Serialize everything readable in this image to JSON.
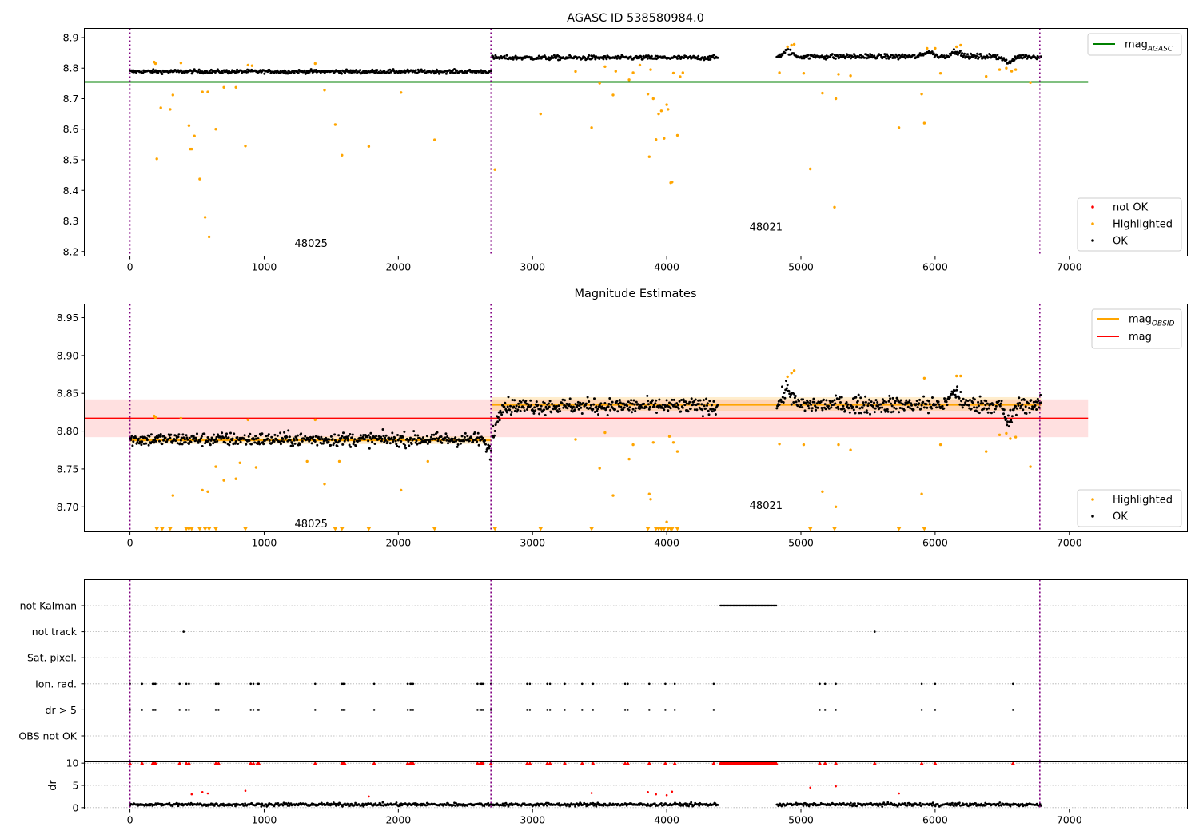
{
  "colors": {
    "green": "#008000",
    "orange": "#ffa500",
    "red": "#ff0000",
    "black": "#000000",
    "purple": "#800080",
    "band_red": "#ff0000",
    "band_orange": "#ffa500",
    "grid": "#b0b0b0"
  },
  "chart_data": [
    {
      "type": "scatter",
      "title": "AGASC ID 538580984.0",
      "xlim": [
        -340,
        7880
      ],
      "ylim": [
        8.185,
        8.93
      ],
      "xticks": [
        0,
        1000,
        2000,
        3000,
        4000,
        5000,
        6000,
        7000
      ],
      "xtick_labels": [
        "0",
        "1000",
        "2000",
        "3000",
        "4000",
        "5000",
        "6000",
        "7000"
      ],
      "yticks": [
        8.2,
        8.3,
        8.4,
        8.5,
        8.6,
        8.7,
        8.8,
        8.9
      ],
      "ytick_labels": [
        "8.2",
        "8.3",
        "8.4",
        "8.5",
        "8.6",
        "8.7",
        "8.8",
        "8.9"
      ],
      "obs_boundaries": [
        0,
        2690,
        6780
      ],
      "obs_labels": [
        {
          "text": "48025",
          "x": 1350,
          "y": 8.215
        },
        {
          "text": "48021",
          "x": 4740,
          "y": 8.268
        }
      ],
      "hlines": [
        {
          "name": "mag_AGASC",
          "y": 8.755,
          "x0": -340,
          "x1": 7140,
          "color": "green"
        }
      ],
      "legend_lines": [
        {
          "label": "mag",
          "sub": "AGASC",
          "color": "green"
        }
      ],
      "legend_markers": [
        {
          "label": "not OK",
          "color": "red"
        },
        {
          "label": "Highlighted",
          "color": "orange"
        },
        {
          "label": "OK",
          "color": "black"
        }
      ],
      "ok_segments": [
        {
          "x0": 0,
          "x1": 2690,
          "mean": 8.789,
          "noise": 0.006
        },
        {
          "x0": 2700,
          "x1": 4380,
          "mean": 8.834,
          "noise": 0.007
        },
        {
          "x0": 4820,
          "x1": 6790,
          "mean": 8.838,
          "noise": 0.008
        }
      ],
      "ok_features": [
        {
          "x": 6550,
          "y": 8.81
        },
        {
          "x": 4900,
          "y": 8.862
        },
        {
          "x": 6150,
          "y": 8.862
        },
        {
          "x": 5950,
          "y": 8.86
        }
      ],
      "highlighted": [
        [
          180,
          8.82
        ],
        [
          190,
          8.815
        ],
        [
          200,
          8.503
        ],
        [
          230,
          8.67
        ],
        [
          300,
          8.665
        ],
        [
          320,
          8.712
        ],
        [
          380,
          8.817
        ],
        [
          440,
          8.612
        ],
        [
          450,
          8.535
        ],
        [
          460,
          8.535
        ],
        [
          480,
          8.578
        ],
        [
          520,
          8.437
        ],
        [
          540,
          8.722
        ],
        [
          560,
          8.312
        ],
        [
          580,
          8.722
        ],
        [
          590,
          8.248
        ],
        [
          640,
          8.6
        ],
        [
          700,
          8.737
        ],
        [
          790,
          8.737
        ],
        [
          860,
          8.545
        ],
        [
          880,
          8.81
        ],
        [
          910,
          8.808
        ],
        [
          1380,
          8.815
        ],
        [
          1450,
          8.728
        ],
        [
          1530,
          8.615
        ],
        [
          1580,
          8.515
        ],
        [
          1780,
          8.544
        ],
        [
          2020,
          8.72
        ],
        [
          2270,
          8.565
        ],
        [
          2720,
          8.468
        ],
        [
          3060,
          8.65
        ],
        [
          3320,
          8.789
        ],
        [
          3440,
          8.605
        ],
        [
          3500,
          8.751
        ],
        [
          3540,
          8.805
        ],
        [
          3600,
          8.712
        ],
        [
          3620,
          8.79
        ],
        [
          3720,
          8.762
        ],
        [
          3750,
          8.785
        ],
        [
          3800,
          8.81
        ],
        [
          3860,
          8.715
        ],
        [
          3870,
          8.51
        ],
        [
          3880,
          8.795
        ],
        [
          3900,
          8.7
        ],
        [
          3920,
          8.566
        ],
        [
          3940,
          8.65
        ],
        [
          3960,
          8.66
        ],
        [
          3980,
          8.57
        ],
        [
          4000,
          8.68
        ],
        [
          4010,
          8.665
        ],
        [
          4030,
          8.425
        ],
        [
          4040,
          8.427
        ],
        [
          4050,
          8.784
        ],
        [
          4080,
          8.58
        ],
        [
          4100,
          8.772
        ],
        [
          4120,
          8.785
        ],
        [
          4840,
          8.785
        ],
        [
          4900,
          8.87
        ],
        [
          4930,
          8.875
        ],
        [
          4950,
          8.878
        ],
        [
          5020,
          8.783
        ],
        [
          5070,
          8.47
        ],
        [
          5160,
          8.718
        ],
        [
          5250,
          8.345
        ],
        [
          5260,
          8.7
        ],
        [
          5280,
          8.78
        ],
        [
          5370,
          8.775
        ],
        [
          5730,
          8.605
        ],
        [
          5900,
          8.715
        ],
        [
          5920,
          8.62
        ],
        [
          5940,
          8.865
        ],
        [
          6000,
          8.865
        ],
        [
          6040,
          8.783
        ],
        [
          6160,
          8.87
        ],
        [
          6190,
          8.875
        ],
        [
          6380,
          8.773
        ],
        [
          6480,
          8.795
        ],
        [
          6530,
          8.8
        ],
        [
          6570,
          8.79
        ],
        [
          6600,
          8.795
        ],
        [
          6710,
          8.753
        ]
      ]
    },
    {
      "type": "scatter",
      "title": "Magnitude Estimates",
      "xlim": [
        -340,
        7880
      ],
      "ylim": [
        8.667,
        8.968
      ],
      "xticks": [
        0,
        1000,
        2000,
        3000,
        4000,
        5000,
        6000,
        7000
      ],
      "xtick_labels": [
        "0",
        "1000",
        "2000",
        "3000",
        "4000",
        "5000",
        "6000",
        "7000"
      ],
      "yticks": [
        8.7,
        8.75,
        8.8,
        8.85,
        8.9,
        8.95
      ],
      "ytick_labels": [
        "8.70",
        "8.75",
        "8.80",
        "8.85",
        "8.90",
        "8.95"
      ],
      "obs_boundaries": [
        0,
        2690,
        6780
      ],
      "obs_labels": [
        {
          "text": "48025",
          "x": 1350,
          "y": 8.673
        },
        {
          "text": "48021",
          "x": 4740,
          "y": 8.697
        }
      ],
      "mag": {
        "y": 8.817,
        "band": [
          8.792,
          8.842
        ],
        "x0": -340,
        "x1": 7140
      },
      "mag_obsid": [
        {
          "x0": 0,
          "x1": 2690,
          "y": 8.788,
          "band": [
            8.783,
            8.793
          ]
        },
        {
          "x0": 2700,
          "x1": 6790,
          "y": 8.835,
          "band": [
            8.827,
            8.845
          ]
        }
      ],
      "legend_lines": [
        {
          "label": "mag",
          "sub": "OBSID",
          "color": "orange"
        },
        {
          "label": "mag",
          "sub": "",
          "color": "red"
        }
      ],
      "legend_markers": [
        {
          "label": "Highlighted",
          "color": "orange"
        },
        {
          "label": "OK",
          "color": "black"
        }
      ],
      "ok_segments": [
        {
          "x0": 0,
          "x1": 2690,
          "mean": 8.789,
          "noise": 0.009
        },
        {
          "x0": 2700,
          "x1": 4380,
          "mean": 8.833,
          "noise": 0.01
        },
        {
          "x0": 4820,
          "x1": 6790,
          "mean": 8.835,
          "noise": 0.011
        }
      ],
      "ok_features": [
        {
          "x": 6550,
          "y": 8.808
        },
        {
          "x": 4900,
          "y": 8.862
        },
        {
          "x": 6150,
          "y": 8.858
        },
        {
          "x": 2690,
          "y": 8.77
        }
      ],
      "highlighted": [
        [
          180,
          8.82
        ],
        [
          190,
          8.818
        ],
        [
          240,
          8.672
        ],
        [
          320,
          8.715
        ],
        [
          380,
          8.817
        ],
        [
          540,
          8.722
        ],
        [
          580,
          8.72
        ],
        [
          640,
          8.753
        ],
        [
          700,
          8.735
        ],
        [
          790,
          8.737
        ],
        [
          820,
          8.758
        ],
        [
          880,
          8.815
        ],
        [
          940,
          8.752
        ],
        [
          1320,
          8.76
        ],
        [
          1380,
          8.815
        ],
        [
          1450,
          8.73
        ],
        [
          1560,
          8.76
        ],
        [
          2020,
          8.722
        ],
        [
          2220,
          8.76
        ],
        [
          3320,
          8.789
        ],
        [
          3500,
          8.751
        ],
        [
          3540,
          8.798
        ],
        [
          3600,
          8.715
        ],
        [
          3720,
          8.763
        ],
        [
          3750,
          8.782
        ],
        [
          3870,
          8.717
        ],
        [
          3880,
          8.71
        ],
        [
          3900,
          8.785
        ],
        [
          4000,
          8.68
        ],
        [
          4020,
          8.793
        ],
        [
          4050,
          8.785
        ],
        [
          4080,
          8.773
        ],
        [
          4840,
          8.783
        ],
        [
          4900,
          8.872
        ],
        [
          4930,
          8.877
        ],
        [
          4950,
          8.88
        ],
        [
          5020,
          8.782
        ],
        [
          5160,
          8.72
        ],
        [
          5260,
          8.7
        ],
        [
          5280,
          8.782
        ],
        [
          5370,
          8.775
        ],
        [
          5900,
          8.717
        ],
        [
          5920,
          8.87
        ],
        [
          6040,
          8.782
        ],
        [
          6160,
          8.873
        ],
        [
          6190,
          8.873
        ],
        [
          6380,
          8.773
        ],
        [
          6480,
          8.795
        ],
        [
          6530,
          8.797
        ],
        [
          6560,
          8.79
        ],
        [
          6600,
          8.792
        ],
        [
          6710,
          8.753
        ]
      ],
      "offscale_x": [
        200,
        240,
        300,
        420,
        440,
        460,
        520,
        560,
        590,
        640,
        860,
        1530,
        1580,
        1780,
        2270,
        2720,
        3060,
        3440,
        3860,
        3920,
        3940,
        3960,
        3980,
        4010,
        4030,
        4040,
        4080,
        5070,
        5250,
        5730,
        5920
      ]
    },
    {
      "type": "scatter",
      "title": "",
      "xlim": [
        -340,
        7880
      ],
      "categories": [
        "not Kalman",
        "not track",
        "Sat. pixel.",
        "Ion. rad.",
        "dr > 5",
        "OBS not OK"
      ],
      "events": {
        "not Kalman": {
          "ranges": [
            [
              4400,
              4820
            ]
          ],
          "x": []
        },
        "not track": {
          "ranges": [],
          "x": [
            400,
            5550
          ]
        },
        "Sat. pixel.": {
          "ranges": [],
          "x": []
        },
        "Ion. rad.": {
          "ranges": [],
          "x": [
            0,
            90,
            170,
            180,
            190,
            370,
            420,
            440,
            640,
            660,
            900,
            920,
            950,
            960,
            1380,
            1580,
            1590,
            1600,
            1820,
            2070,
            2090,
            2100,
            2110,
            2590,
            2610,
            2620,
            2630,
            2690,
            2960,
            2980,
            3110,
            3130,
            3240,
            3370,
            3450,
            3690,
            3710,
            3870,
            3990,
            4060,
            4350,
            5140,
            5180,
            5260,
            5900,
            6000,
            6580
          ]
        },
        "dr > 5": {
          "ranges": [],
          "x": [
            0,
            90,
            170,
            180,
            190,
            370,
            420,
            440,
            640,
            660,
            900,
            920,
            950,
            960,
            1380,
            1580,
            1590,
            1600,
            1820,
            2070,
            2090,
            2100,
            2110,
            2590,
            2610,
            2620,
            2630,
            2690,
            2960,
            2980,
            3110,
            3130,
            3240,
            3370,
            3450,
            3690,
            3710,
            3870,
            3990,
            4060,
            4350,
            5140,
            5180,
            5260,
            5900,
            6000,
            6580
          ]
        },
        "OBS not OK": {
          "ranges": [],
          "x": []
        }
      }
    },
    {
      "type": "scatter",
      "title": "",
      "ylabel": "dr",
      "xlim": [
        -340,
        7880
      ],
      "ylim": [
        -0.3,
        10.3
      ],
      "xticks": [
        0,
        1000,
        2000,
        3000,
        4000,
        5000,
        6000,
        7000
      ],
      "xtick_labels": [
        "0",
        "1000",
        "2000",
        "3000",
        "4000",
        "5000",
        "6000",
        "7000"
      ],
      "yticks": [
        0,
        5,
        10
      ],
      "ytick_labels": [
        "0",
        "5",
        "10"
      ],
      "clipped_ranges": [
        [
          4400,
          4820
        ]
      ],
      "clipped_x": [
        0,
        90,
        170,
        180,
        190,
        370,
        420,
        440,
        640,
        660,
        900,
        920,
        950,
        960,
        1380,
        1580,
        1590,
        1600,
        1820,
        2070,
        2090,
        2100,
        2110,
        2590,
        2610,
        2620,
        2630,
        2690,
        2960,
        2980,
        3110,
        3130,
        3240,
        3370,
        3450,
        3690,
        3710,
        3870,
        3990,
        4060,
        4350,
        5140,
        5180,
        5260,
        5550,
        5900,
        6000,
        6580
      ],
      "outliers": [
        [
          460,
          3.0
        ],
        [
          540,
          3.5
        ],
        [
          580,
          3.2
        ],
        [
          860,
          3.8
        ],
        [
          1780,
          2.5
        ],
        [
          3440,
          3.3
        ],
        [
          3860,
          3.5
        ],
        [
          3920,
          3.0
        ],
        [
          4000,
          2.8
        ],
        [
          4040,
          3.6
        ],
        [
          5070,
          4.5
        ],
        [
          5260,
          4.8
        ],
        [
          5730,
          3.2
        ]
      ],
      "ok_segments": [
        {
          "x0": 0,
          "x1": 2690,
          "mean": 0.7,
          "noise": 0.35
        },
        {
          "x0": 2700,
          "x1": 4380,
          "mean": 0.7,
          "noise": 0.35
        },
        {
          "x0": 4820,
          "x1": 6790,
          "mean": 0.7,
          "noise": 0.35
        }
      ]
    }
  ]
}
